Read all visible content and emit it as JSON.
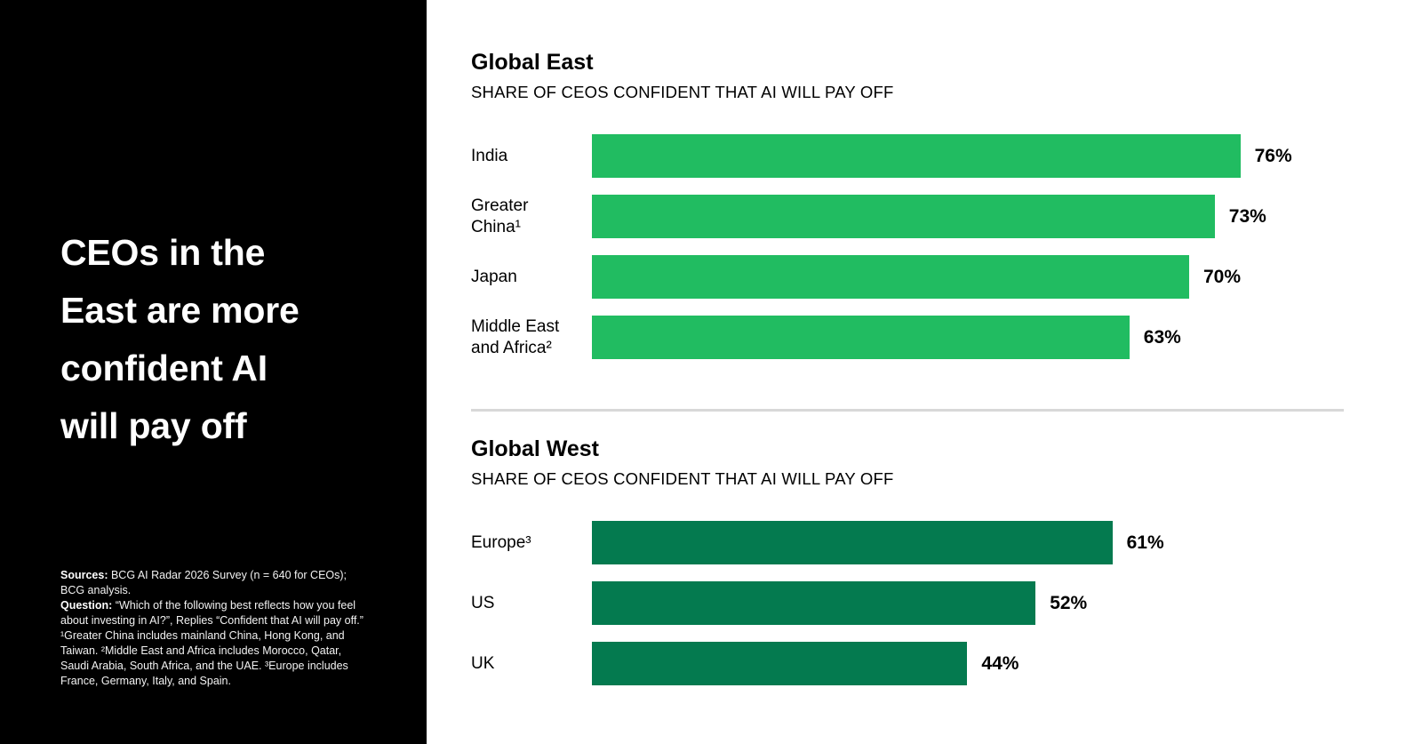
{
  "sidebar": {
    "title": "CEOs in the\nEast are more\nconfident AI\nwill pay off",
    "footnote": {
      "sources_label": "Sources:",
      "sources_text": " BCG AI Radar 2026 Survey (n = 640 for CEOs); BCG analysis.",
      "question_label": "Question:",
      "question_text": " “Which of the following best reflects how you feel about investing in AI?”, Replies “Confident that AI will pay off.”",
      "notes": "¹Greater China includes mainland China, Hong Kong, and Taiwan. ²Middle East and Africa includes Morocco, Qatar, Saudi Arabia, South Africa, and the UAE. ³Europe includes France, Germany, Italy, and Spain."
    }
  },
  "chart_data": [
    {
      "type": "bar",
      "orientation": "horizontal",
      "title": "Global East",
      "subtitle": "SHARE OF CEOS CONFIDENT THAT AI WILL PAY OFF",
      "categories": [
        "India",
        "Greater China¹",
        "Japan",
        "Middle East and Africa²"
      ],
      "values": [
        76,
        73,
        70,
        63
      ],
      "unit": "%",
      "bar_color": "#21BC61",
      "xlim": [
        0,
        100
      ],
      "grid": false,
      "legend": false
    },
    {
      "type": "bar",
      "orientation": "horizontal",
      "title": "Global West",
      "subtitle": "SHARE OF CEOS CONFIDENT THAT AI WILL PAY OFF",
      "categories": [
        "Europe³",
        "US",
        "UK"
      ],
      "values": [
        61,
        52,
        44
      ],
      "unit": "%",
      "bar_color": "#047A4F",
      "xlim": [
        0,
        100
      ],
      "grid": false,
      "legend": false
    }
  ],
  "colors": {
    "panel_bg": "#000000",
    "east_bar": "#21BC61",
    "west_bar": "#047A4F",
    "divider": "#D8D8D8",
    "text": "#000000"
  }
}
